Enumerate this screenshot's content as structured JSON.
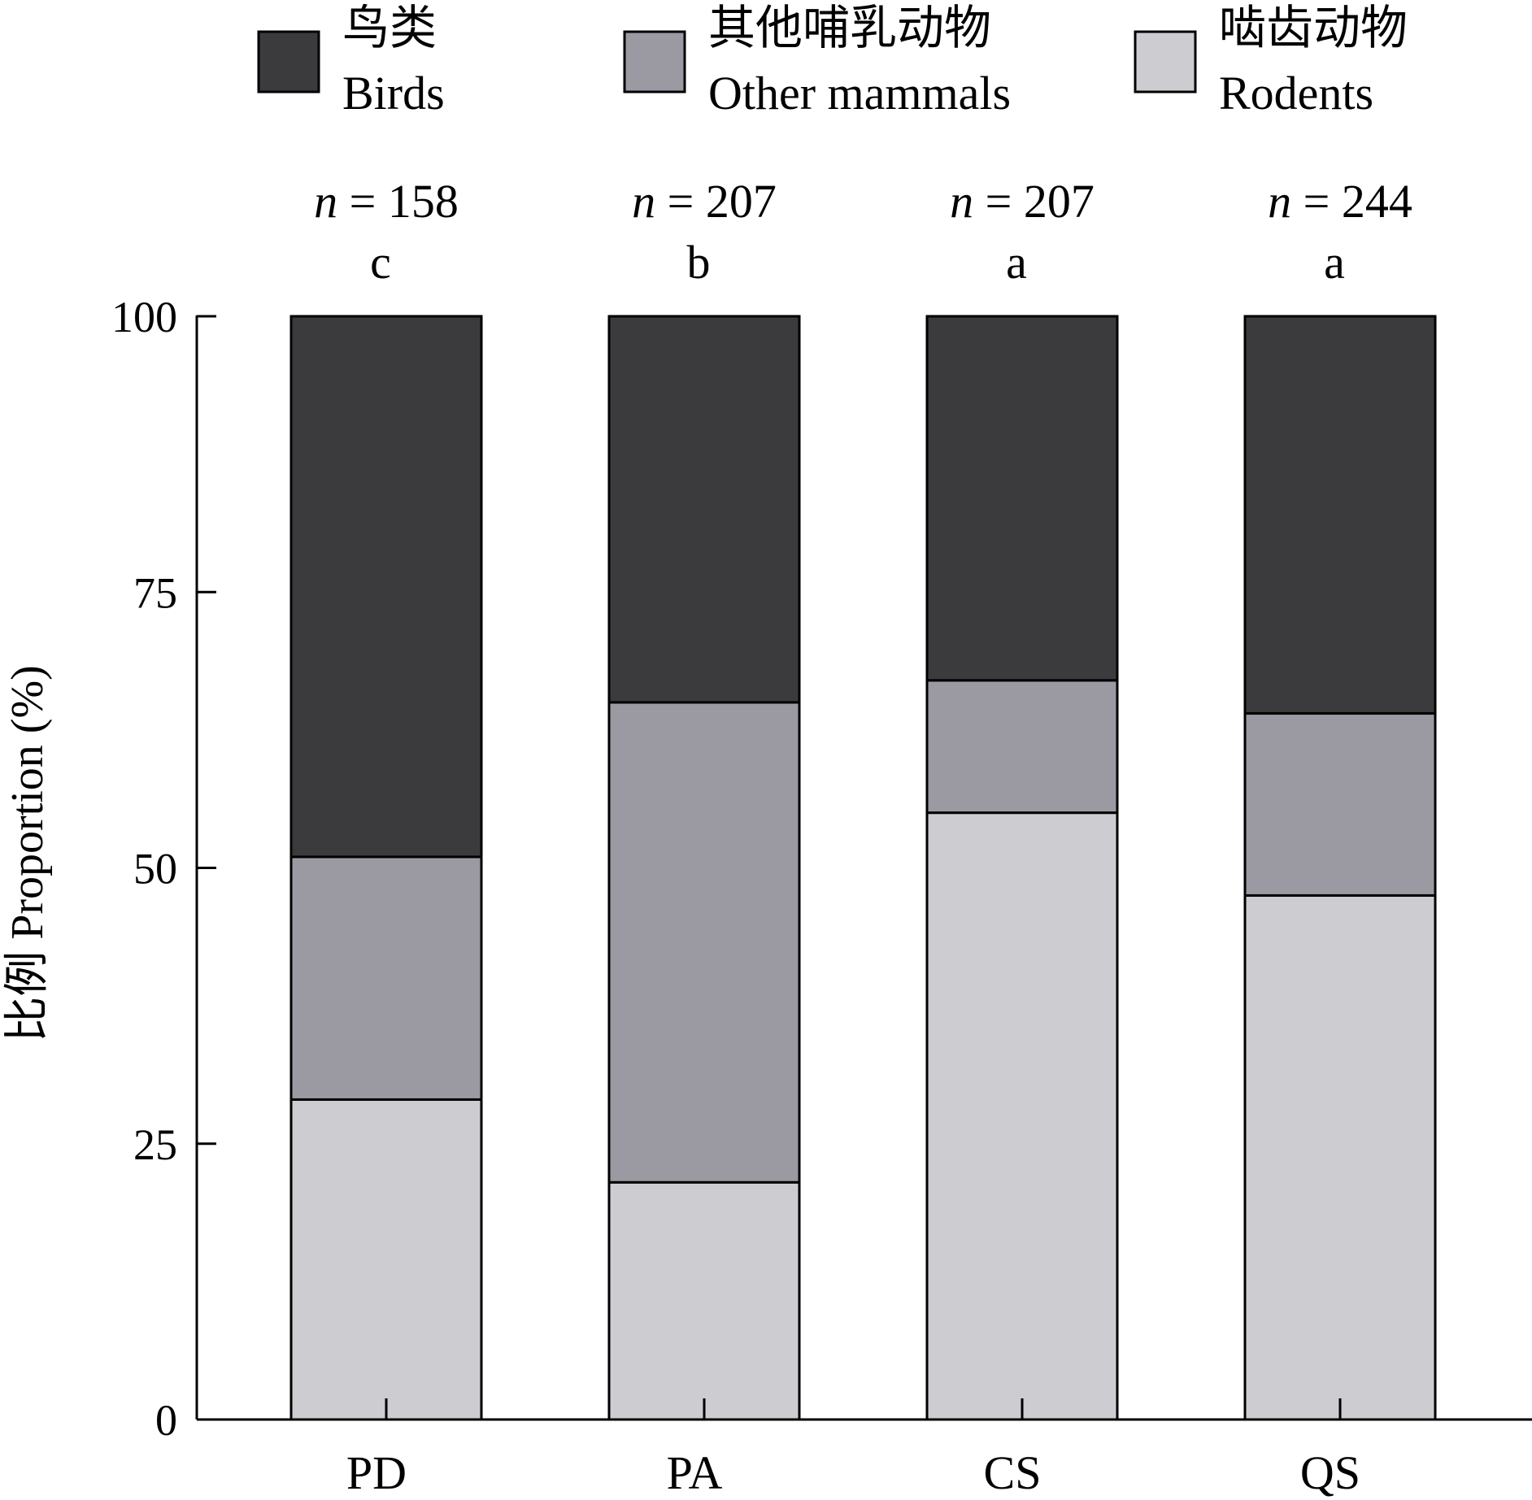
{
  "chart_data": {
    "type": "bar",
    "stacked": true,
    "ylabel": "比例 Proportion (%)",
    "ylim": [
      0,
      100
    ],
    "yticks": [
      0,
      25,
      50,
      75,
      100
    ],
    "grid": false,
    "legend_position": "top",
    "categories": [
      "PD",
      "PA",
      "CS",
      "QS"
    ],
    "sample_sizes": [
      "n = 158",
      "n = 207",
      "n = 207",
      "n = 244"
    ],
    "significance_letters": [
      "c",
      "b",
      "a",
      "a"
    ],
    "series": [
      {
        "name_zh": "啮齿动物",
        "name_en": "Rodents",
        "color": "#cdcdd1",
        "values": [
          29,
          21.5,
          55,
          47.5
        ]
      },
      {
        "name_zh": "其他哺乳动物",
        "name_en": "Other mammals",
        "color": "#9b9aa3",
        "values": [
          22,
          43.5,
          12,
          16.5
        ]
      },
      {
        "name_zh": "鸟类",
        "name_en": "Birds",
        "color": "#3b3b3e",
        "values": [
          49,
          35,
          33,
          36
        ]
      }
    ],
    "legend_order": [
      2,
      1,
      0
    ]
  }
}
